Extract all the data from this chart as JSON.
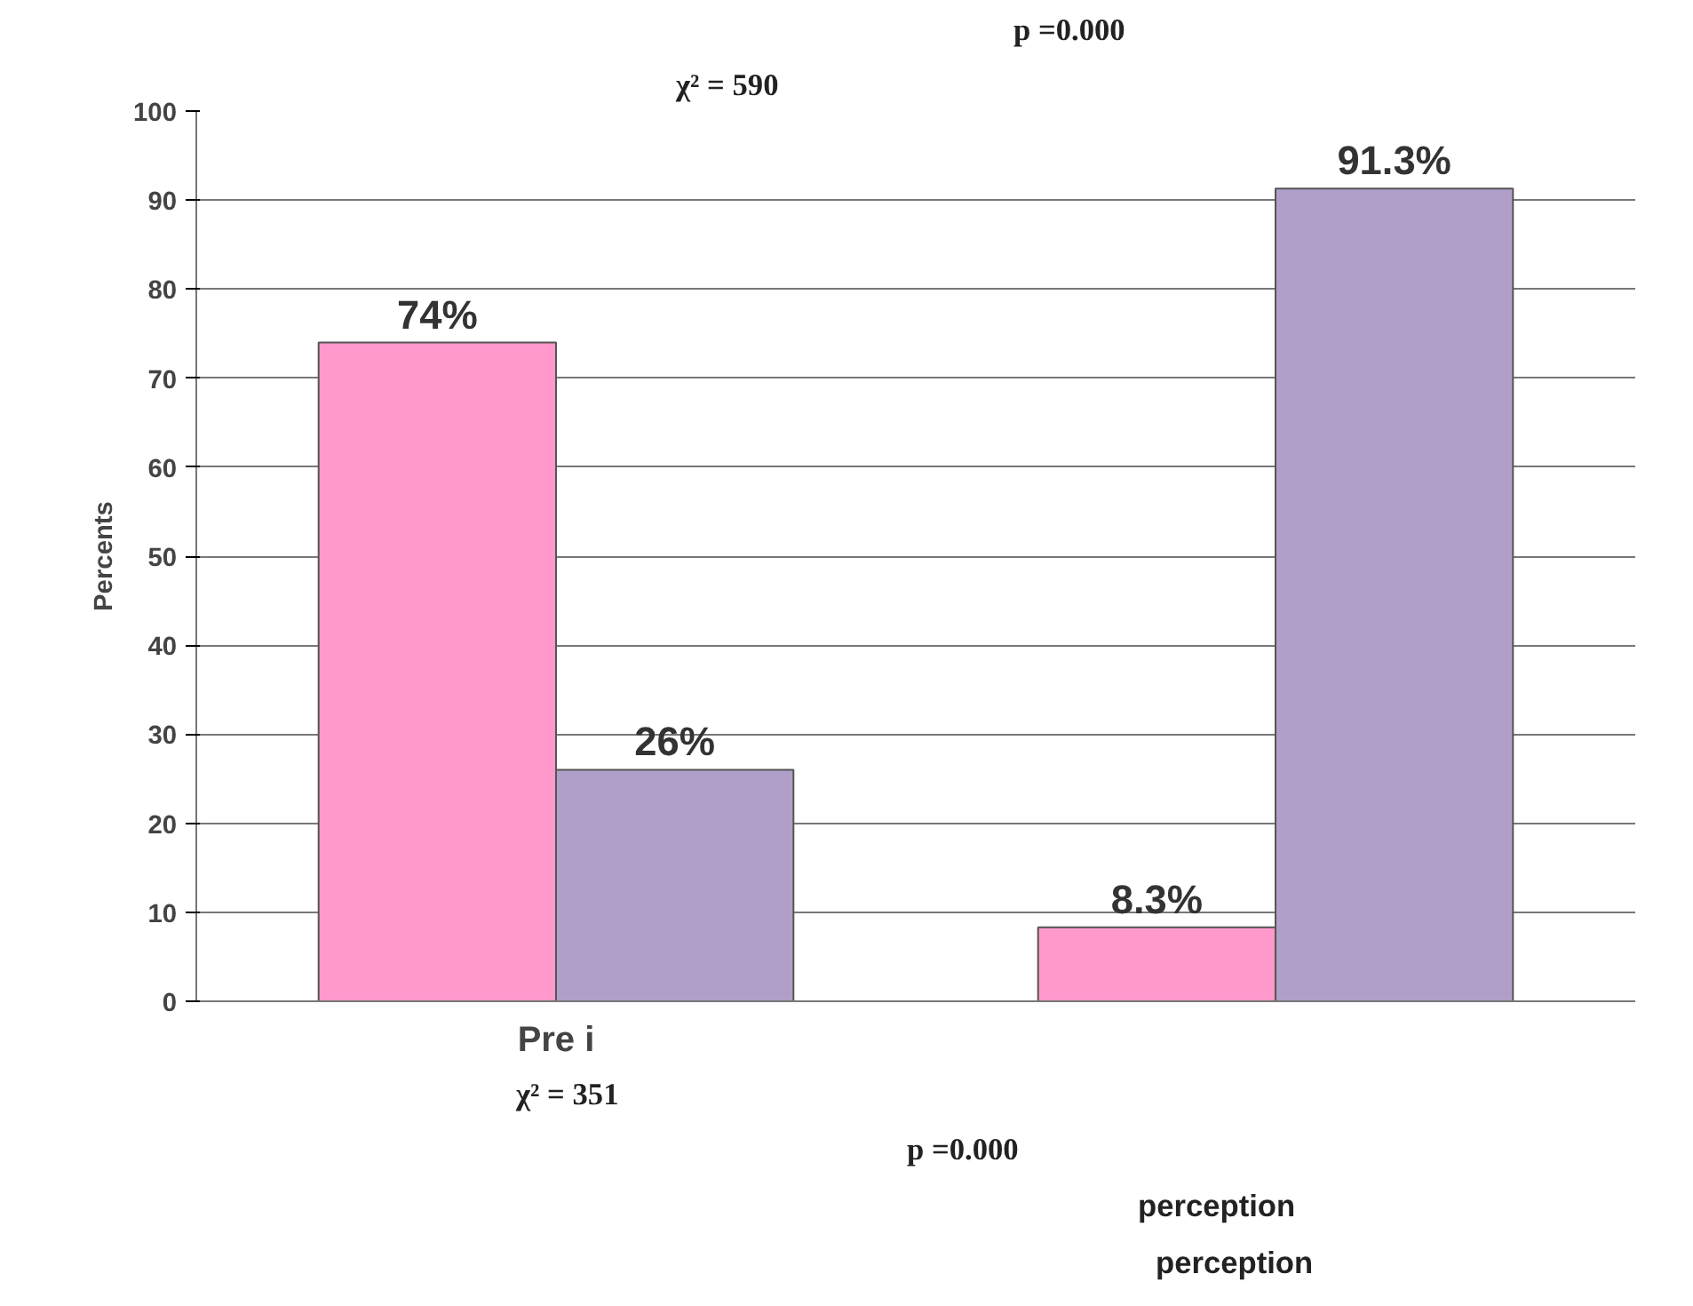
{
  "chart_data": {
    "type": "bar",
    "ylabel": "Percents",
    "categories": [
      "Pre i",
      null
    ],
    "series": [
      {
        "color": "#ff99cc",
        "values": [
          74,
          8.3
        ],
        "value_labels": [
          "74%",
          "8.3%"
        ]
      },
      {
        "color": "#b09fc8",
        "values": [
          26,
          91.3
        ],
        "value_labels": [
          "26%",
          "91.3%"
        ]
      }
    ],
    "ylim": [
      0,
      100
    ],
    "yticks": [
      0,
      10,
      20,
      30,
      40,
      50,
      60,
      70,
      80,
      90,
      100
    ],
    "grid": "y",
    "annotations": [
      "χ² = 590",
      "p =0.000",
      "χ² = 351",
      "p =0.000",
      "perception",
      "perception"
    ]
  }
}
